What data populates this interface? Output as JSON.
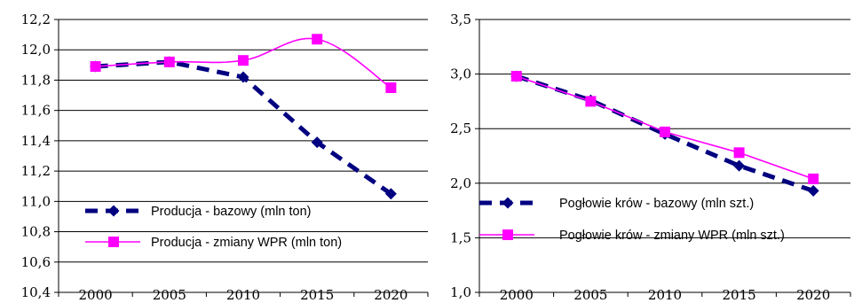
{
  "chart_data": [
    {
      "type": "line",
      "x": [
        "2000",
        "2005",
        "2010",
        "2015",
        "2020"
      ],
      "ylim": [
        10.4,
        12.2
      ],
      "yticks": [
        "10,4",
        "10,6",
        "10,8",
        "11,0",
        "11,2",
        "11,4",
        "11,6",
        "11,8",
        "12,0",
        "12,2"
      ],
      "grid": "horizontal",
      "legend_position": "bottom-left",
      "series": [
        {
          "name": "Producja - bazowy (mln ton)",
          "values": [
            11.89,
            11.92,
            11.82,
            11.39,
            11.05
          ],
          "color": "#000080",
          "style": "dashed",
          "marker": "diamond"
        },
        {
          "name": "Producja - zmiany WPR (mln ton)",
          "values": [
            11.89,
            11.92,
            11.93,
            12.07,
            11.75
          ],
          "color": "#ff00ff",
          "style": "solid-smooth",
          "marker": "square"
        }
      ]
    },
    {
      "type": "line",
      "x": [
        "2000",
        "2005",
        "2010",
        "2015",
        "2020"
      ],
      "ylim": [
        1.0,
        3.5
      ],
      "yticks": [
        "1,0",
        "1,5",
        "2,0",
        "2,5",
        "3,0",
        "3,5"
      ],
      "grid": "horizontal",
      "legend_position": "bottom-left",
      "series": [
        {
          "name": "Pogłowie krów - bazowy (mln szt.)",
          "values": [
            2.98,
            2.76,
            2.45,
            2.16,
            1.93
          ],
          "color": "#000080",
          "style": "dashed",
          "marker": "diamond"
        },
        {
          "name": "Pogłowie krów - zmiany WPR (mln szt.)",
          "values": [
            2.98,
            2.75,
            2.47,
            2.28,
            2.04
          ],
          "color": "#ff00ff",
          "style": "solid",
          "marker": "square"
        }
      ]
    }
  ]
}
